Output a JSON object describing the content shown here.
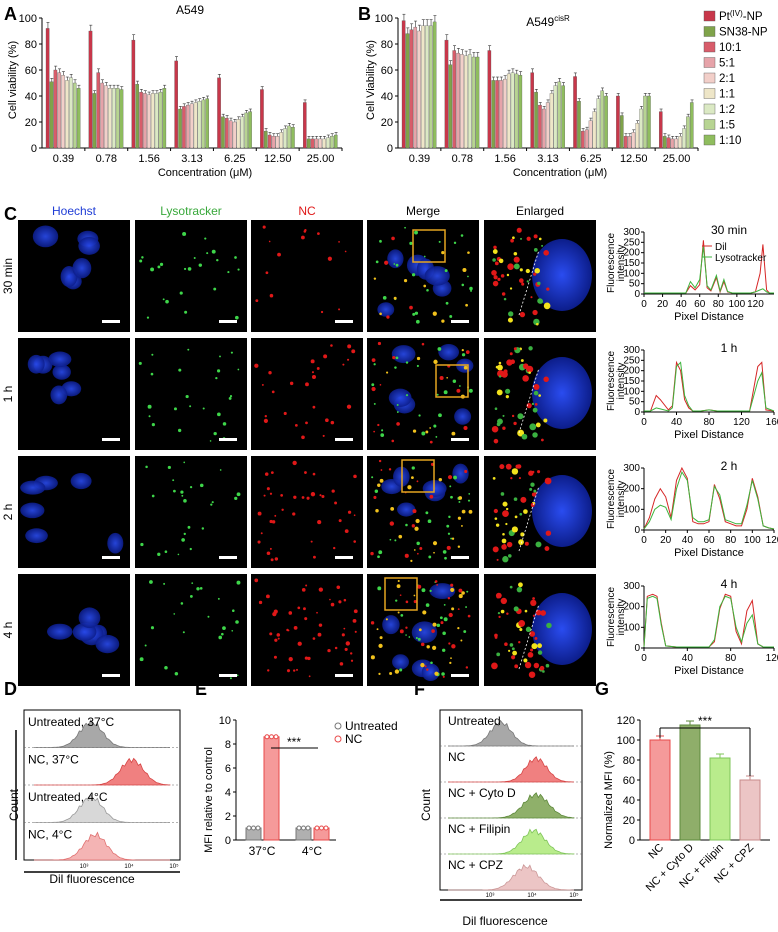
{
  "panel_labels": {
    "A": "A",
    "B": "B",
    "C": "C",
    "D": "D",
    "E": "E",
    "F": "F",
    "G": "G"
  },
  "colors": {
    "series": [
      "#c8374a",
      "#7fa34a",
      "#d85c6a",
      "#e6a3a9",
      "#f2cfc9",
      "#eee6c8",
      "#dbe9c4",
      "#b7d492",
      "#8fbd5e"
    ],
    "grey": "#8f8f8f",
    "nc_red": "#e84a4a",
    "hoechst": "#1f3dd6",
    "lyso": "#38a83a",
    "nc": "#e01818",
    "box": "#e6a521"
  },
  "panelA": {
    "title": "A549",
    "ylabel": "Cell viability (%)",
    "xlabel": "Concentration (μM)"
  },
  "panelB": {
    "title": "A549",
    "title_sup": "cisR",
    "ylabel": "Cell Viability (%)",
    "xlabel": "Concentration (μM)"
  },
  "legend": {
    "items": [
      "Pt(IV)-NP",
      "SN38-NP",
      "10:1",
      "5:1",
      "2:1",
      "1:1",
      "1:2",
      "1:5",
      "1:10"
    ],
    "pt_label": {
      "base": "Pt",
      "sup": "(IV)",
      "rest": "-NP"
    }
  },
  "chart_data": [
    {
      "type": "bar",
      "title": "A549",
      "xlabel": "Concentration (μM)",
      "ylabel": "Cell viability (%)",
      "ylim": [
        0,
        100
      ],
      "yticks": [
        0,
        20,
        40,
        60,
        80,
        100
      ],
      "categories": [
        "0.39",
        "0.78",
        "1.56",
        "3.13",
        "6.25",
        "12.50",
        "25.00"
      ],
      "series": [
        {
          "name": "Pt(IV)-NP",
          "values": [
            92,
            90,
            83,
            67,
            54,
            45,
            35
          ]
        },
        {
          "name": "SN38-NP",
          "values": [
            51,
            42,
            49,
            30,
            24,
            13,
            7
          ]
        },
        {
          "name": "10:1",
          "values": [
            60,
            58,
            43,
            32,
            23,
            10,
            7
          ]
        },
        {
          "name": "5:1",
          "values": [
            58,
            50,
            42,
            33,
            21,
            9,
            7
          ]
        },
        {
          "name": "2:1",
          "values": [
            56,
            48,
            41,
            34,
            20,
            9,
            7
          ]
        },
        {
          "name": "1:1",
          "values": [
            52,
            46,
            42,
            35,
            22,
            12,
            7
          ]
        },
        {
          "name": "1:2",
          "values": [
            54,
            46,
            42,
            36,
            24,
            15,
            8
          ]
        },
        {
          "name": "1:5",
          "values": [
            50,
            46,
            43,
            37,
            27,
            17,
            9
          ]
        },
        {
          "name": "1:10",
          "values": [
            46,
            45,
            46,
            38,
            28,
            16,
            10
          ]
        }
      ]
    },
    {
      "type": "bar",
      "title": "A549cisR",
      "xlabel": "Concentration (μM)",
      "ylabel": "Cell Viability (%)",
      "ylim": [
        0,
        100
      ],
      "yticks": [
        0,
        20,
        40,
        60,
        80,
        100
      ],
      "categories": [
        "0.39",
        "0.78",
        "1.56",
        "3.13",
        "6.25",
        "12.50",
        "25.00"
      ],
      "series": [
        {
          "name": "Pt(IV)-NP",
          "values": [
            98,
            83,
            75,
            58,
            55,
            40,
            28
          ]
        },
        {
          "name": "SN38-NP",
          "values": [
            88,
            64,
            52,
            43,
            36,
            25,
            9
          ]
        },
        {
          "name": "10:1",
          "values": [
            91,
            75,
            52,
            33,
            13,
            9,
            8
          ]
        },
        {
          "name": "5:1",
          "values": [
            93,
            73,
            52,
            30,
            14,
            9,
            7
          ]
        },
        {
          "name": "2:1",
          "values": [
            90,
            72,
            53,
            35,
            21,
            12,
            7
          ]
        },
        {
          "name": "1:1",
          "values": [
            94,
            71,
            57,
            42,
            28,
            19,
            9
          ]
        },
        {
          "name": "1:2",
          "values": [
            94,
            72,
            58,
            48,
            38,
            30,
            15
          ]
        },
        {
          "name": "1:5",
          "values": [
            94,
            70,
            57,
            51,
            44,
            40,
            24
          ]
        },
        {
          "name": "1:10",
          "values": [
            97,
            70,
            56,
            48,
            40,
            40,
            35
          ]
        }
      ]
    },
    {
      "type": "line",
      "title": "30 min",
      "xlabel": "Pixel Distance",
      "ylabel": "Fluorescence intensity",
      "xlim": [
        0,
        140
      ],
      "ylim": [
        0,
        300
      ],
      "xticks": [
        0,
        20,
        40,
        60,
        80,
        100,
        120
      ],
      "yticks": [
        0,
        50,
        100,
        150,
        200,
        250,
        300
      ],
      "series": [
        {
          "name": "Dil",
          "x": [
            0,
            20,
            45,
            50,
            55,
            60,
            64,
            68,
            72,
            78,
            82,
            86,
            90,
            95,
            100,
            105,
            110,
            115,
            120,
            125,
            128,
            132,
            135,
            140
          ],
          "y": [
            5,
            5,
            5,
            40,
            20,
            45,
            260,
            30,
            15,
            80,
            10,
            60,
            10,
            5,
            5,
            5,
            5,
            5,
            10,
            100,
            240,
            20,
            5,
            5
          ]
        },
        {
          "name": "Lysotracker",
          "x": [
            0,
            20,
            45,
            50,
            55,
            60,
            64,
            68,
            72,
            78,
            82,
            86,
            90,
            95,
            100,
            105,
            110,
            115,
            120,
            125,
            128,
            132,
            135,
            140
          ],
          "y": [
            5,
            5,
            5,
            60,
            30,
            70,
            230,
            40,
            20,
            90,
            15,
            70,
            12,
            5,
            5,
            5,
            5,
            5,
            10,
            20,
            25,
            10,
            5,
            5
          ]
        }
      ]
    },
    {
      "type": "line",
      "title": "1 h",
      "xlabel": "Pixel Distance",
      "ylabel": "Fluorescence intensity",
      "xlim": [
        0,
        160
      ],
      "ylim": [
        0,
        300
      ],
      "xticks": [
        0,
        40,
        80,
        120,
        160
      ],
      "yticks": [
        0,
        50,
        100,
        150,
        200,
        250,
        300
      ],
      "series": [
        {
          "name": "Dil",
          "x": [
            0,
            8,
            15,
            20,
            30,
            35,
            40,
            45,
            50,
            55,
            60,
            70,
            80,
            90,
            95,
            100,
            110,
            120,
            130,
            140,
            145,
            150,
            160
          ],
          "y": [
            5,
            5,
            80,
            60,
            10,
            30,
            240,
            200,
            60,
            20,
            5,
            5,
            10,
            5,
            5,
            5,
            5,
            5,
            5,
            220,
            240,
            10,
            5
          ]
        },
        {
          "name": "Lysotracker",
          "x": [
            0,
            8,
            15,
            20,
            30,
            35,
            40,
            45,
            50,
            55,
            60,
            70,
            80,
            90,
            95,
            100,
            110,
            120,
            130,
            140,
            145,
            150,
            160
          ],
          "y": [
            5,
            5,
            20,
            15,
            5,
            20,
            220,
            240,
            80,
            30,
            5,
            5,
            10,
            5,
            5,
            5,
            5,
            5,
            5,
            150,
            190,
            20,
            5
          ]
        }
      ]
    },
    {
      "type": "line",
      "title": "2 h",
      "xlabel": "Pixel Distance",
      "ylabel": "Fluorescence intensity",
      "xlim": [
        0,
        120
      ],
      "ylim": [
        0,
        300
      ],
      "xticks": [
        0,
        20,
        40,
        60,
        80,
        100,
        120
      ],
      "yticks": [
        0,
        100,
        200,
        300
      ],
      "series": [
        {
          "name": "Dil",
          "x": [
            0,
            5,
            10,
            15,
            20,
            25,
            30,
            35,
            40,
            45,
            50,
            55,
            60,
            65,
            70,
            75,
            80,
            85,
            90,
            95,
            100,
            105,
            110,
            115,
            120
          ],
          "y": [
            5,
            60,
            150,
            200,
            160,
            60,
            240,
            300,
            250,
            40,
            30,
            30,
            40,
            220,
            150,
            40,
            30,
            20,
            20,
            100,
            250,
            160,
            20,
            10,
            5
          ]
        },
        {
          "name": "Lysotracker",
          "x": [
            0,
            5,
            10,
            15,
            20,
            25,
            30,
            35,
            40,
            45,
            50,
            55,
            60,
            65,
            70,
            75,
            80,
            85,
            90,
            95,
            100,
            105,
            110,
            115,
            120
          ],
          "y": [
            5,
            40,
            100,
            120,
            110,
            50,
            200,
            280,
            240,
            60,
            40,
            40,
            50,
            210,
            170,
            50,
            40,
            30,
            30,
            120,
            240,
            150,
            20,
            10,
            5
          ]
        }
      ]
    },
    {
      "type": "line",
      "title": "4 h",
      "xlabel": "Pixel Distance",
      "ylabel": "Fluorescence intensity",
      "xlim": [
        0,
        120
      ],
      "ylim": [
        0,
        300
      ],
      "xticks": [
        0,
        40,
        80,
        120
      ],
      "yticks": [
        0,
        100,
        200,
        300
      ],
      "series": [
        {
          "name": "Dil",
          "x": [
            0,
            3,
            8,
            12,
            16,
            20,
            30,
            40,
            50,
            60,
            65,
            70,
            75,
            80,
            85,
            90,
            95,
            100,
            105,
            110,
            115,
            120
          ],
          "y": [
            5,
            250,
            260,
            250,
            120,
            10,
            5,
            5,
            5,
            5,
            30,
            190,
            260,
            250,
            80,
            20,
            180,
            230,
            20,
            5,
            5,
            5
          ]
        },
        {
          "name": "Lysotracker",
          "x": [
            0,
            3,
            8,
            12,
            16,
            20,
            30,
            40,
            50,
            60,
            65,
            70,
            75,
            80,
            85,
            90,
            95,
            100,
            105,
            110,
            115,
            120
          ],
          "y": [
            5,
            240,
            250,
            240,
            110,
            10,
            5,
            5,
            5,
            5,
            40,
            200,
            250,
            240,
            100,
            30,
            120,
            160,
            20,
            5,
            5,
            5
          ]
        }
      ]
    },
    {
      "type": "bar",
      "title": "",
      "ylabel": "MFI relative to control",
      "ylim": [
        0,
        10
      ],
      "yticks": [
        0,
        2,
        4,
        6,
        8,
        10
      ],
      "categories": [
        "37°C",
        "4°C"
      ],
      "series": [
        {
          "name": "Untreated",
          "values": [
            1,
            1
          ]
        },
        {
          "name": "NC",
          "values": [
            8.6,
            1
          ]
        }
      ],
      "significance": "***"
    },
    {
      "type": "bar",
      "title": "",
      "ylabel": "Normalized MFI (%)",
      "ylim": [
        0,
        120
      ],
      "yticks": [
        0,
        20,
        40,
        60,
        80,
        100,
        120
      ],
      "categories": [
        "NC",
        "NC + Cyto D",
        "NC + Filipin",
        "NC + CPZ"
      ],
      "values": [
        100,
        115,
        82,
        60
      ],
      "significance": "***"
    }
  ],
  "panelC": {
    "col_headers": [
      "Hoechst",
      "Lysotracker",
      "NC",
      "Merge",
      "Enlarged"
    ],
    "row_labels": [
      "30 min",
      "1 h",
      "2 h",
      "4 h"
    ],
    "profile_titles": [
      "30 min",
      "1 h",
      "2 h",
      "4 h"
    ],
    "profile_legend": [
      "Dil",
      "Lysotracker"
    ],
    "profile_ylabel_1": "Fluorescence",
    "profile_ylabel_2": "intensity",
    "profile_xlabel": "Pixel Distance",
    "profile_xticks": [
      [
        "0",
        "20",
        "40",
        "60",
        "80",
        "100",
        "120"
      ],
      [
        "0",
        "40",
        "80",
        "120",
        "160"
      ],
      [
        "0",
        "20",
        "40",
        "60",
        "80",
        "100",
        "120"
      ],
      [
        "0",
        "40",
        "80",
        "120"
      ]
    ],
    "profile_yticks": [
      [
        "0",
        "50",
        "100",
        "150",
        "200",
        "250",
        "300"
      ],
      [
        "0",
        "50",
        "100",
        "150",
        "200",
        "250",
        "300"
      ],
      [
        "0",
        "100",
        "200",
        "300"
      ],
      [
        "0",
        "100",
        "200",
        "300"
      ]
    ]
  },
  "panelD": {
    "labels": [
      "Untreated, 37°C",
      "NC, 37°C",
      "Untreated, 4°C",
      "NC, 4°C"
    ],
    "ylabel": "Count",
    "xlabel": "Dil fluorescence",
    "xticks": [
      "10³",
      "10⁴",
      "10⁵"
    ]
  },
  "panelE": {
    "ylabel": "MFI relative to control",
    "categories": [
      "37°C",
      "4°C"
    ],
    "legend": [
      "Untreated",
      "NC"
    ],
    "yticks": [
      "0",
      "2",
      "4",
      "6",
      "8",
      "10"
    ],
    "sig": "***"
  },
  "panelF": {
    "labels": [
      "Untreated",
      "NC",
      "NC + Cyto D",
      "NC + Filipin",
      "NC + CPZ"
    ],
    "ylabel": "Count",
    "xlabel": "Dil fluorescence",
    "xticks": [
      "10³",
      "10⁴",
      "10⁵"
    ]
  },
  "panelG": {
    "ylabel": "Normalized MFI (%)",
    "categories": [
      "NC",
      "NC + Cyto D",
      "NC + Filipin",
      "NC + CPZ"
    ],
    "yticks": [
      "0",
      "20",
      "40",
      "60",
      "80",
      "100",
      "120"
    ],
    "sig": "***"
  }
}
